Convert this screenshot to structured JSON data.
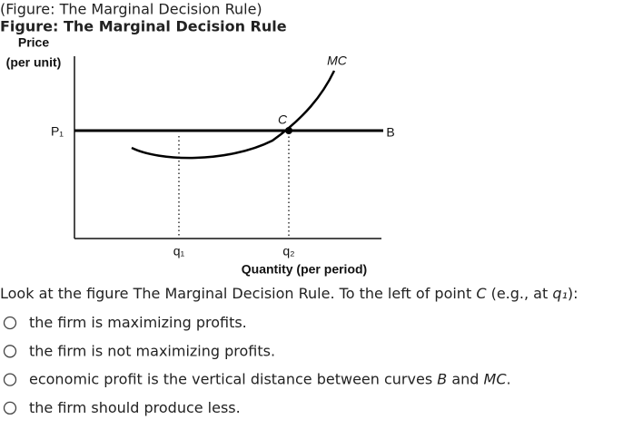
{
  "header": {
    "caption": "(Figure: The Marginal Decision Rule)",
    "title": "Figure: The Marginal Decision Rule"
  },
  "figure": {
    "y_label_1": "Price",
    "y_label_2": "(per unit)",
    "price_label": "P₁",
    "line_label": "B",
    "curve_label": "MC",
    "point_label": "C",
    "q1_label": "q₁",
    "q2_label": "q₂",
    "x_label": "Quantity (per period)"
  },
  "question": {
    "segments": [
      "Look at the figure The Marginal Decision Rule. To the left of point ",
      "C",
      " (e.g., at ",
      "q₁",
      "):"
    ]
  },
  "options": [
    {
      "segments": [
        "the firm is maximizing profits."
      ]
    },
    {
      "segments": [
        "the firm is not maximizing profits."
      ]
    },
    {
      "segments": [
        "economic profit is the vertical distance between curves ",
        "B",
        " and ",
        "MC",
        "."
      ]
    },
    {
      "segments": [
        "the firm should produce less."
      ]
    }
  ]
}
